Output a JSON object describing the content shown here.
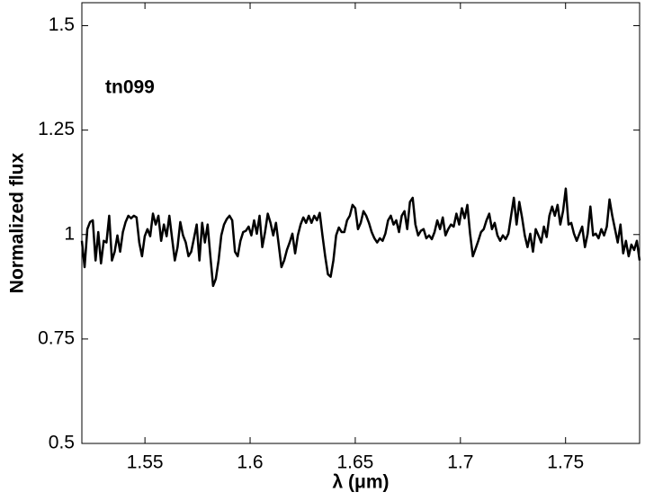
{
  "chart_data": {
    "type": "line",
    "annotation": "tn099",
    "xlabel": "λ (μm)",
    "ylabel": "Normalized flux",
    "color": "#000000",
    "xlim": [
      1.52,
      1.7852
    ],
    "ylim": [
      0.5,
      1.555
    ],
    "xticks": [
      1.55,
      1.6,
      1.65,
      1.7,
      1.75
    ],
    "yticks": [
      0.5,
      0.75,
      1,
      1.25,
      1.5
    ],
    "x": [
      1.52,
      1.5213,
      1.5226,
      1.5239,
      1.5252,
      1.5265,
      1.5278,
      1.5291,
      1.5304,
      1.5317,
      1.533,
      1.5343,
      1.5356,
      1.5369,
      1.5382,
      1.5395,
      1.5408,
      1.5421,
      1.5434,
      1.5447,
      1.546,
      1.5473,
      1.5486,
      1.5499,
      1.5512,
      1.5525,
      1.5538,
      1.5551,
      1.5564,
      1.5577,
      1.559,
      1.5603,
      1.5616,
      1.5629,
      1.5642,
      1.5655,
      1.5668,
      1.5681,
      1.5694,
      1.5707,
      1.572,
      1.5733,
      1.5746,
      1.5759,
      1.5772,
      1.5785,
      1.5798,
      1.5811,
      1.5824,
      1.5837,
      1.585,
      1.5863,
      1.5876,
      1.5889,
      1.5902,
      1.5915,
      1.5928,
      1.5941,
      1.5954,
      1.5967,
      1.598,
      1.5993,
      1.6006,
      1.6019,
      1.6032,
      1.6045,
      1.6058,
      1.6071,
      1.6084,
      1.6097,
      1.611,
      1.6123,
      1.6136,
      1.6149,
      1.6162,
      1.6175,
      1.6188,
      1.6201,
      1.6214,
      1.6227,
      1.624,
      1.6253,
      1.6266,
      1.6279,
      1.6292,
      1.6305,
      1.6318,
      1.6331,
      1.6344,
      1.6357,
      1.637,
      1.6383,
      1.6396,
      1.6409,
      1.6422,
      1.6435,
      1.6448,
      1.6461,
      1.6474,
      1.6487,
      1.65,
      1.6513,
      1.6526,
      1.6539,
      1.6552,
      1.6565,
      1.6578,
      1.6591,
      1.6604,
      1.6617,
      1.663,
      1.6643,
      1.6656,
      1.6669,
      1.6682,
      1.6695,
      1.6708,
      1.6721,
      1.6734,
      1.6747,
      1.676,
      1.6773,
      1.6786,
      1.6799,
      1.6812,
      1.6825,
      1.6838,
      1.6851,
      1.6864,
      1.6877,
      1.689,
      1.6903,
      1.6916,
      1.6929,
      1.6942,
      1.6955,
      1.6968,
      1.6981,
      1.6994,
      1.7007,
      1.702,
      1.7033,
      1.7046,
      1.7059,
      1.7072,
      1.7085,
      1.7098,
      1.7111,
      1.7124,
      1.7137,
      1.715,
      1.7163,
      1.7176,
      1.7189,
      1.7202,
      1.7215,
      1.7228,
      1.7241,
      1.7254,
      1.7267,
      1.728,
      1.7293,
      1.7306,
      1.7319,
      1.7332,
      1.7345,
      1.7358,
      1.7371,
      1.7384,
      1.7397,
      1.741,
      1.7423,
      1.7436,
      1.7449,
      1.7462,
      1.7475,
      1.7488,
      1.7501,
      1.7514,
      1.7527,
      1.754,
      1.7553,
      1.7566,
      1.7579,
      1.7592,
      1.7605,
      1.7618,
      1.7631,
      1.7644,
      1.7657,
      1.767,
      1.7683,
      1.7696,
      1.7709,
      1.7722,
      1.7735,
      1.7748,
      1.7761,
      1.7774,
      1.7787,
      1.78,
      1.7813,
      1.7826,
      1.7839,
      1.7852
    ],
    "values": [
      0.985,
      0.922,
      1.013,
      1.03,
      1.034,
      0.938,
      1.006,
      0.931,
      0.985,
      0.981,
      1.045,
      0.938,
      0.959,
      0.998,
      0.959,
      1.006,
      1.03,
      1.045,
      1.039,
      1.045,
      1.041,
      0.981,
      0.948,
      0.996,
      1.013,
      0.996,
      1.05,
      1.024,
      1.045,
      0.985,
      1.024,
      0.996,
      1.045,
      0.991,
      0.938,
      0.97,
      1.03,
      0.998,
      0.981,
      0.948,
      0.959,
      0.991,
      1.024,
      0.938,
      1.028,
      0.981,
      1.024,
      0.948,
      0.877,
      0.894,
      0.938,
      0.998,
      1.024,
      1.037,
      1.045,
      1.034,
      0.959,
      0.948,
      0.985,
      1.006,
      1.009,
      1.019,
      0.998,
      1.034,
      1.002,
      1.045,
      0.97,
      1.006,
      1.05,
      1.028,
      0.998,
      1.028,
      0.976,
      0.922,
      0.938,
      0.963,
      0.981,
      1.002,
      0.955,
      0.998,
      1.024,
      1.041,
      1.028,
      1.045,
      1.028,
      1.045,
      1.034,
      1.052,
      0.998,
      0.948,
      0.905,
      0.899,
      0.938,
      0.998,
      1.017,
      1.006,
      1.006,
      1.034,
      1.045,
      1.071,
      1.063,
      1.013,
      1.028,
      1.056,
      1.045,
      1.028,
      1.006,
      0.991,
      0.981,
      0.991,
      0.985,
      1.002,
      1.034,
      1.045,
      1.024,
      1.034,
      1.006,
      1.045,
      1.056,
      1.013,
      1.078,
      1.088,
      1.024,
      0.998,
      1.009,
      1.013,
      0.991,
      0.998,
      0.989,
      1.006,
      1.034,
      1.013,
      1.041,
      0.998,
      1.013,
      1.024,
      1.019,
      1.05,
      1.024,
      1.063,
      1.039,
      1.071,
      1.002,
      0.948,
      0.966,
      0.985,
      1.006,
      1.013,
      1.034,
      1.05,
      1.013,
      1.028,
      0.998,
      0.985,
      0.998,
      0.989,
      1.002,
      1.045,
      1.088,
      1.024,
      1.078,
      1.041,
      0.998,
      0.97,
      1.002,
      0.959,
      1.013,
      0.998,
      0.981,
      1.019,
      0.994,
      1.045,
      1.067,
      1.045,
      1.071,
      1.024,
      1.056,
      1.11,
      1.024,
      1.028,
      1.002,
      0.985,
      1.002,
      1.019,
      0.97,
      1.002,
      1.067,
      0.998,
      1.002,
      0.991,
      1.013,
      0.998,
      1.019,
      1.084,
      1.045,
      1.013,
      0.981,
      1.024,
      0.955,
      0.985,
      0.948,
      0.976,
      0.963,
      0.985,
      0.938
    ]
  }
}
